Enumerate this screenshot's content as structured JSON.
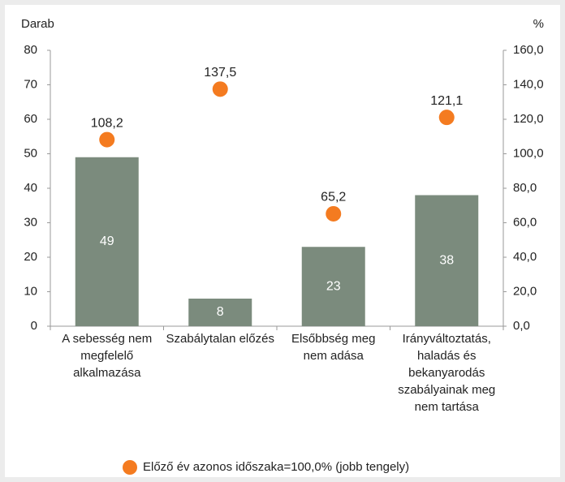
{
  "chart_data": {
    "type": "bar",
    "ylabel": "Darab",
    "y2label": "%",
    "categories": [
      "A sebesség nem megfelelő alkalmazása",
      "Szabálytalan előzés",
      "Elsőbbség meg nem adása",
      "Irányváltoztatás, haladás és bekanyarodás szabályainak meg nem tartása"
    ],
    "series": [
      {
        "color": "#7b8b7d",
        "values": [
          49,
          8,
          23,
          38
        ]
      },
      {
        "name": "Előző év azonos időszaka=100,0% (jobb tengely)",
        "type": "scatter",
        "axis": "y2",
        "color": "#f47b20",
        "values": [
          108.2,
          137.5,
          65.2,
          121.1
        ],
        "value_labels": [
          "108,2",
          "137,5",
          "65,2",
          "121,1"
        ]
      }
    ],
    "ylim": [
      0,
      80
    ],
    "yticks": [
      0,
      10,
      20,
      30,
      40,
      50,
      60,
      70,
      80
    ],
    "y2lim": [
      0,
      160
    ],
    "y2ticks": [
      {
        "value": 0,
        "label": "0,0"
      },
      {
        "value": 20,
        "label": "20,0"
      },
      {
        "value": 40,
        "label": "40,0"
      },
      {
        "value": 60,
        "label": "60,0"
      },
      {
        "value": 80,
        "label": "80,0"
      },
      {
        "value": 100,
        "label": "100,0"
      },
      {
        "value": 120,
        "label": "120,0"
      },
      {
        "value": 140,
        "label": "140,0"
      },
      {
        "value": 160,
        "label": "160,0"
      }
    ]
  }
}
